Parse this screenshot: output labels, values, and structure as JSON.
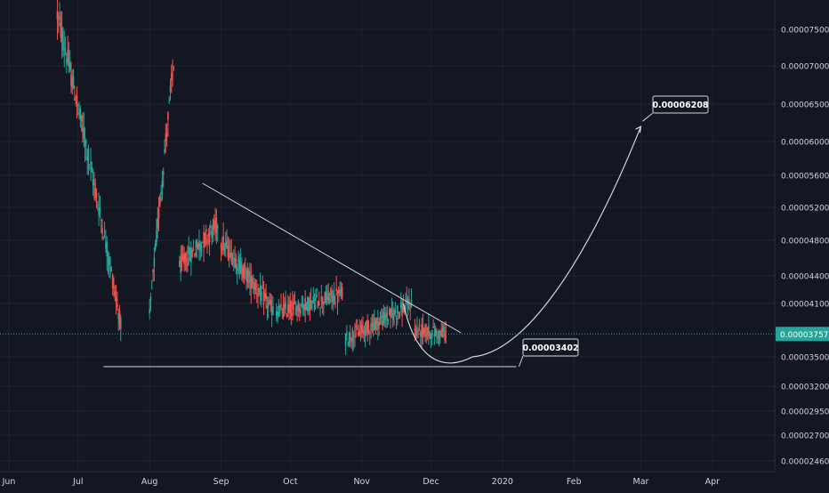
{
  "colors": {
    "background": "#131722",
    "grid": "#1f2433",
    "up": "#26a69a",
    "down": "#ef5350",
    "axis_text": "#d1d4dc",
    "price_line": "#26a69a",
    "drawing": "#d1d4dc"
  },
  "chart_data": {
    "type": "candlestick",
    "title": "",
    "ylim": [
      2.4e-05,
      7.8e-05
    ],
    "y_axis_ticks": [
      "0.00007500",
      "0.00007000",
      "0.00006500",
      "0.00006000",
      "0.00005600",
      "0.00005200",
      "0.00004800",
      "0.00004400",
      "0.00004100",
      "0.00003500",
      "0.00003200",
      "0.00002950",
      "0.00002700",
      "0.00002460"
    ],
    "x_axis_ticks": [
      "Jun",
      "Jul",
      "Aug",
      "Sep",
      "Oct",
      "Nov",
      "Dec",
      "2020",
      "Feb",
      "Mar",
      "Apr"
    ],
    "current_price": "0.00003757",
    "annotations": [
      {
        "label": "0.00006208",
        "kind": "projected target"
      },
      {
        "label": "0.00003402",
        "kind": "support level"
      }
    ],
    "drawings": {
      "descending_trendline": [
        [
          "2019-08-24",
          5.5e-05
        ],
        [
          "2019-12-14",
          3.77e-05
        ]
      ],
      "support_line": [
        [
          "2019-07-12",
          3.4e-05
        ],
        [
          "2020-01-07",
          3.4e-05
        ]
      ],
      "projection_curve": [
        "2019-11-19",
        "2019-12-19",
        "2020-03-01"
      ]
    },
    "series": [
      {
        "segment": "Jun-Jul decline",
        "from": [
          "2019-06-22",
          7.7e-05
        ],
        "to": [
          "2019-07-20",
          3.8e-05
        ]
      },
      {
        "segment": "Aug spike",
        "from": [
          "2019-08-01",
          3.95e-05
        ],
        "to": [
          "2019-08-12",
          7.2e-05
        ]
      },
      {
        "segment": "Aug-Sep",
        "from": [
          "2019-08-14",
          4.5e-05
        ],
        "to": [
          "2019-08-31",
          5e-05
        ]
      },
      {
        "segment": "Sep",
        "from": [
          "2019-09-01",
          4.8e-05
        ],
        "to": [
          "2019-09-24",
          4e-05
        ]
      },
      {
        "segment": "Oct",
        "from": [
          "2019-09-25",
          4e-05
        ],
        "to": [
          "2019-10-24",
          4.2e-05
        ]
      },
      {
        "segment": "Nov",
        "from": [
          "2019-10-25",
          3.7e-05
        ],
        "to": [
          "2019-11-23",
          4.1e-05
        ]
      },
      {
        "segment": "Dec",
        "from": [
          "2019-11-24",
          3.8e-05
        ],
        "to": [
          "2019-12-08",
          3.75e-05
        ]
      }
    ]
  }
}
